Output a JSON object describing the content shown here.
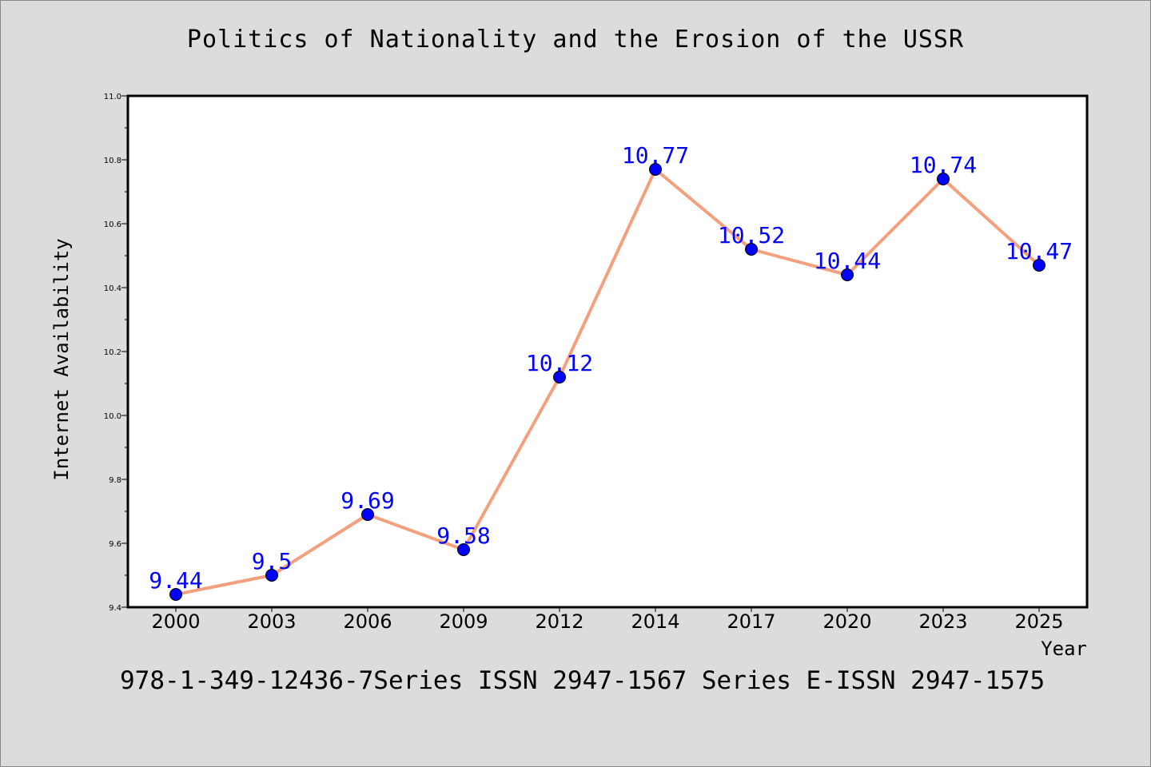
{
  "title": "Politics of Nationality and the Erosion of the USSR",
  "footer": "978-1-349-12436-7Series ISSN 2947-1567 Series E-ISSN 2947-1575",
  "chart_data": {
    "type": "line",
    "title": "Politics of Nationality and the Erosion of the USSR",
    "xlabel": "Year",
    "ylabel": "Internet Availability",
    "categories": [
      "2000",
      "2003",
      "2006",
      "2009",
      "2012",
      "2014",
      "2017",
      "2020",
      "2023",
      "2025"
    ],
    "series": [
      {
        "values": [
          9.44,
          9.5,
          9.69,
          9.58,
          10.12,
          10.77,
          10.52,
          10.44,
          10.74,
          10.47
        ],
        "data_labels": [
          "9.44",
          "9.5",
          "9.69",
          "9.58",
          "10.12",
          "10.77",
          "10.52",
          "10.44",
          "10.74",
          "10.47"
        ],
        "line_color": "#f4a07e",
        "marker_color": "#0000ff"
      }
    ],
    "ylim": [
      9.4,
      11.0
    ],
    "yticks": [
      "9.4",
      "9.6",
      "9.8",
      "10.0",
      "10.2",
      "10.4",
      "10.6",
      "10.8",
      "11.0"
    ],
    "grid": false,
    "legend": "none"
  }
}
